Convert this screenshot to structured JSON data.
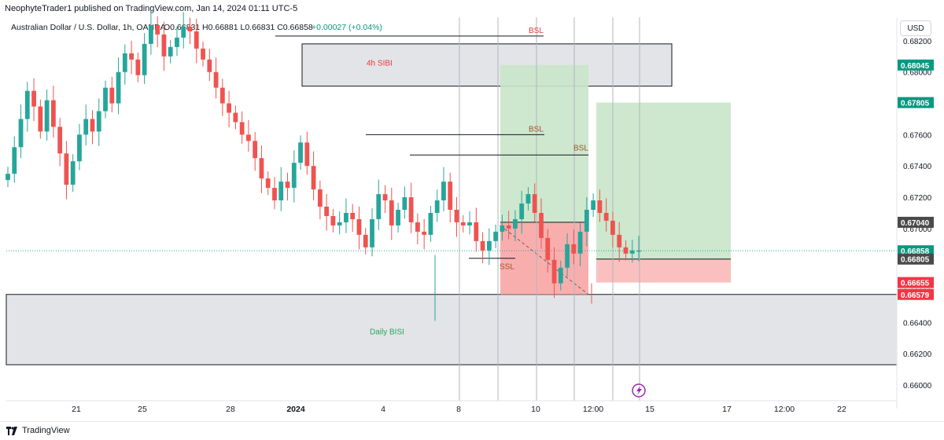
{
  "header": {
    "publisher_line": "NeophyteTrader1 published on TradingView.com, Jan 14, 2024 01:11 UTC-5",
    "symbol": "Australian Dollar / U.S. Dollar, 1h, OANDA",
    "ohlc_text": "O0.66831 H0.66881 L0.66831 C0.66858",
    "change_text": "+0.00027 (+0.04%)"
  },
  "currency_button": "USD",
  "footer": {
    "brand": "TradingView"
  },
  "colors": {
    "up": "#26a69a",
    "down": "#ef5350",
    "long_zone": "#c8e6c9",
    "stop_zone": "#f8a5a5",
    "sibi_zone": "#e3e4e8",
    "price_green": "#089981",
    "price_red": "#f23645",
    "price_dark": "#4a4a4a"
  },
  "chart_data": {
    "type": "candlestick",
    "instrument": "Australian Dollar / U.S. Dollar",
    "timeframe": "1h",
    "y_axis": {
      "ticks": [
        "0.68200",
        "0.68000",
        "0.67800",
        "0.67600",
        "0.67400",
        "0.67200",
        "0.67000",
        "0.66800",
        "0.66600",
        "0.66400",
        "0.66200",
        "0.66000"
      ],
      "ylim": [
        0.659,
        0.6835
      ]
    },
    "x_axis": {
      "ticks": [
        "21",
        "25",
        "28",
        "2024",
        "4",
        "8",
        "10",
        "12:00",
        "15",
        "17",
        "12:00",
        "22"
      ]
    },
    "price_labels": [
      {
        "value": "0.68045",
        "style": "green"
      },
      {
        "value": "0.67805",
        "style": "green"
      },
      {
        "value": "0.67040",
        "style": "dark"
      },
      {
        "value": "0.66858",
        "style": "teal"
      },
      {
        "value": "0.66805",
        "style": "dark"
      },
      {
        "value": "0.66655",
        "style": "red"
      },
      {
        "value": "0.66579",
        "style": "red"
      }
    ],
    "annotations": [
      {
        "text": "BSL",
        "level": 0.6823
      },
      {
        "text": "BSL",
        "level": 0.676
      },
      {
        "text": "BSL",
        "level": 0.6747
      },
      {
        "text": "SSL",
        "level": 0.668
      },
      {
        "text": "4h SIBI",
        "top": 0.6818,
        "bottom": 0.6791
      },
      {
        "text": "Daily BISI",
        "top": 0.66579,
        "bottom": 0.6613
      }
    ],
    "trade_positions": [
      {
        "type": "long",
        "entry": 0.6704,
        "target": 0.68045,
        "stop": 0.66579
      },
      {
        "type": "long",
        "entry": 0.66805,
        "target": 0.67805,
        "stop": 0.66655
      }
    ],
    "series": [
      {
        "name": "price",
        "values": [
          0.6735,
          0.6752,
          0.677,
          0.6788,
          0.6778,
          0.6762,
          0.6782,
          0.6765,
          0.6748,
          0.6728,
          0.6743,
          0.676,
          0.677,
          0.6762,
          0.6775,
          0.679,
          0.678,
          0.68,
          0.6812,
          0.6808,
          0.6798,
          0.6818,
          0.683,
          0.6824,
          0.681,
          0.6816,
          0.6822,
          0.6829,
          0.6826,
          0.6815,
          0.6808,
          0.68,
          0.679,
          0.678,
          0.6774,
          0.6768,
          0.676,
          0.6756,
          0.6745,
          0.6732,
          0.6726,
          0.6718,
          0.673,
          0.6726,
          0.6742,
          0.6755,
          0.674,
          0.6725,
          0.6714,
          0.6708,
          0.6702,
          0.6704,
          0.671,
          0.6706,
          0.6696,
          0.6688,
          0.6706,
          0.6722,
          0.6718,
          0.6702,
          0.6712,
          0.672,
          0.6704,
          0.6698,
          0.6696,
          0.671,
          0.6718,
          0.673,
          0.6712,
          0.6704,
          0.6702,
          0.6704,
          0.6692,
          0.6686,
          0.6692,
          0.6698,
          0.6702,
          0.67,
          0.6706,
          0.6716,
          0.6722,
          0.671,
          0.6694,
          0.668,
          0.6665,
          0.6675,
          0.669,
          0.6684,
          0.6698,
          0.6712,
          0.6718,
          0.671,
          0.6705,
          0.6696,
          0.6688,
          0.6684,
          0.6686,
          0.6686
        ]
      }
    ]
  }
}
